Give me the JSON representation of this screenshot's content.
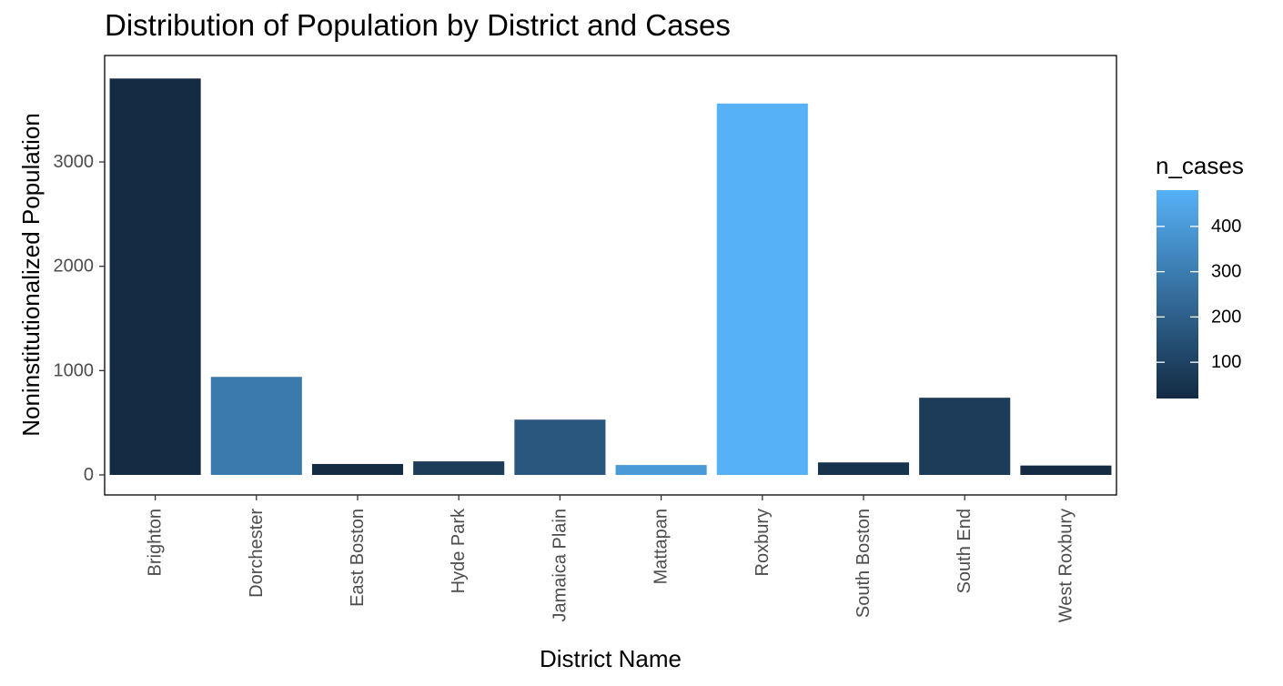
{
  "chart_data": {
    "type": "bar",
    "title": "Distribution of Population by District and Cases",
    "xlabel": "District Name",
    "ylabel": "Noninstitutionalized Population",
    "categories": [
      "Brighton",
      "Dorchester",
      "East Boston",
      "Hyde Park",
      "Jamaica Plain",
      "Mattapan",
      "Roxbury",
      "South Boston",
      "South End",
      "West Roxbury"
    ],
    "values": [
      3800,
      940,
      105,
      130,
      530,
      95,
      3560,
      120,
      740,
      90
    ],
    "fill_values": [
      20,
      290,
      20,
      80,
      170,
      400,
      480,
      50,
      80,
      20
    ],
    "ylim": [
      0,
      3820
    ],
    "yticks": [
      0,
      1000,
      2000,
      3000
    ],
    "grid": false,
    "legend": {
      "title": "n_cases",
      "placement": "right",
      "ticks": [
        100,
        200,
        300,
        400
      ],
      "range": [
        20,
        480
      ],
      "color_low": "#132B43",
      "color_high": "#56B1F7"
    }
  }
}
